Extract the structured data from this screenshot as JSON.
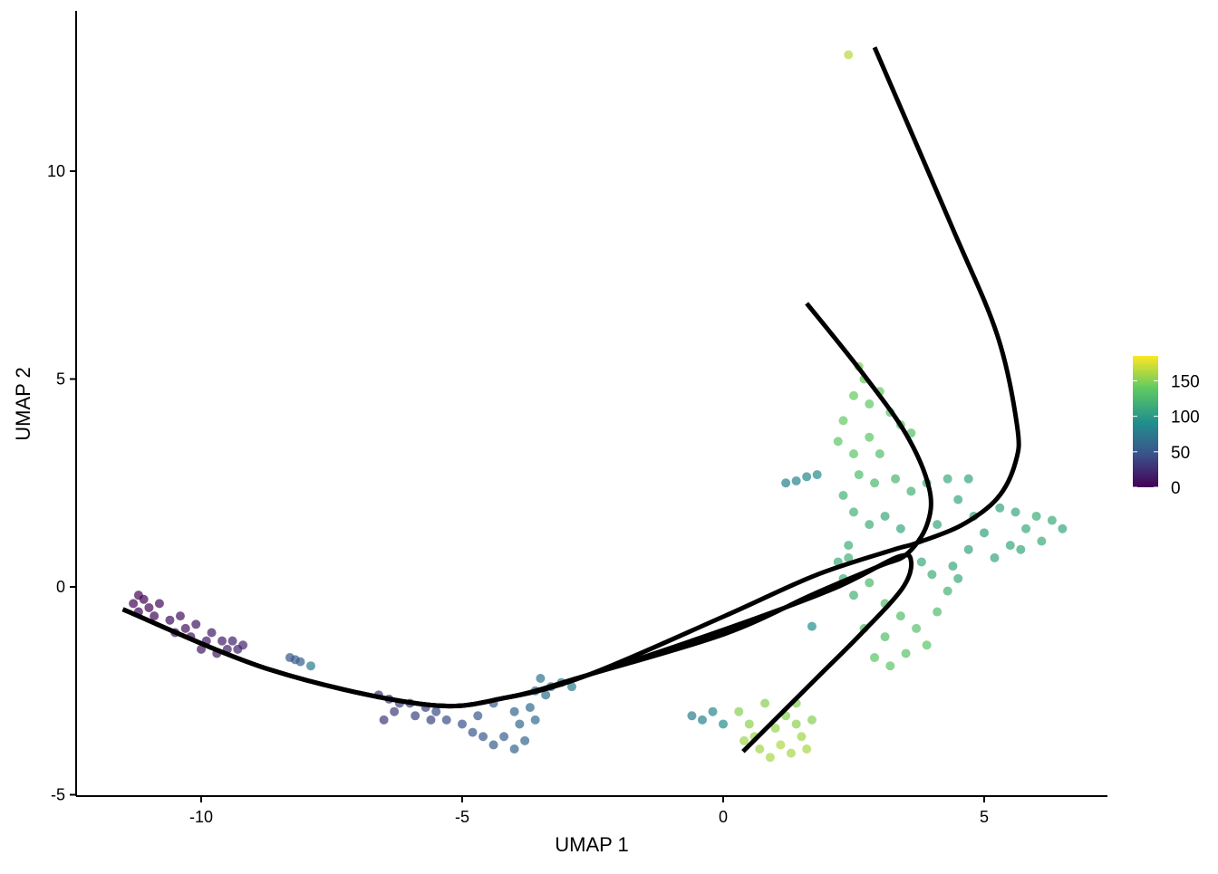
{
  "chart_data": {
    "type": "scatter",
    "xlabel": "UMAP 1",
    "ylabel": "UMAP 2",
    "xlim": [
      -12.5,
      7.3
    ],
    "ylim": [
      -5,
      13.7
    ],
    "x_ticks": [
      -10,
      -5,
      0,
      5
    ],
    "y_ticks": [
      -5,
      0,
      5,
      10
    ],
    "grid": false,
    "legend": {
      "position": "right",
      "type": "colorbar",
      "palette": "viridis",
      "range": [
        0,
        185
      ],
      "ticks": [
        0,
        50,
        100,
        150
      ],
      "colors": [
        "#440154",
        "#3b528b",
        "#21918c",
        "#5ec962",
        "#fde725"
      ]
    },
    "points": [
      [
        -11.3,
        -0.4,
        2
      ],
      [
        -11.2,
        -0.6,
        3
      ],
      [
        -11.1,
        -0.3,
        1
      ],
      [
        -11.0,
        -0.5,
        4
      ],
      [
        -10.9,
        -0.7,
        5
      ],
      [
        -11.2,
        -0.2,
        2
      ],
      [
        -10.8,
        -0.4,
        6
      ],
      [
        -10.6,
        -0.8,
        8
      ],
      [
        -10.4,
        -0.7,
        9
      ],
      [
        -10.3,
        -1.0,
        10
      ],
      [
        -10.1,
        -0.9,
        12
      ],
      [
        -10.2,
        -1.2,
        11
      ],
      [
        -10.0,
        -1.5,
        13
      ],
      [
        -9.9,
        -1.3,
        14
      ],
      [
        -9.8,
        -1.1,
        15
      ],
      [
        -9.6,
        -1.3,
        16
      ],
      [
        -9.5,
        -1.5,
        17
      ],
      [
        -9.4,
        -1.3,
        18
      ],
      [
        -9.3,
        -1.5,
        19
      ],
      [
        -9.2,
        -1.4,
        20
      ],
      [
        -9.7,
        -1.6,
        16
      ],
      [
        -10.5,
        -1.1,
        9
      ],
      [
        -8.3,
        -1.7,
        48
      ],
      [
        -8.2,
        -1.75,
        52
      ],
      [
        -8.1,
        -1.8,
        55
      ],
      [
        -7.9,
        -1.9,
        75
      ],
      [
        -6.6,
        -2.6,
        30
      ],
      [
        -6.4,
        -2.7,
        32
      ],
      [
        -6.3,
        -3.0,
        34
      ],
      [
        -6.5,
        -3.2,
        33
      ],
      [
        -6.2,
        -2.8,
        35
      ],
      [
        -6.0,
        -2.8,
        36
      ],
      [
        -5.9,
        -3.1,
        38
      ],
      [
        -5.7,
        -2.9,
        37
      ],
      [
        -5.6,
        -3.2,
        39
      ],
      [
        -5.5,
        -3.0,
        42
      ],
      [
        -5.3,
        -3.2,
        44
      ],
      [
        -5.0,
        -3.3,
        46
      ],
      [
        -4.8,
        -3.5,
        50
      ],
      [
        -4.6,
        -3.6,
        52
      ],
      [
        -4.4,
        -3.8,
        55
      ],
      [
        -4.2,
        -3.6,
        58
      ],
      [
        -4.0,
        -3.9,
        60
      ],
      [
        -3.8,
        -3.7,
        62
      ],
      [
        -3.9,
        -3.3,
        63
      ],
      [
        -4.0,
        -3.0,
        60
      ],
      [
        -3.7,
        -2.9,
        64
      ],
      [
        -3.6,
        -2.5,
        66
      ],
      [
        -3.5,
        -2.2,
        70
      ],
      [
        -3.4,
        -2.6,
        68
      ],
      [
        -3.3,
        -2.4,
        72
      ],
      [
        -3.1,
        -2.3,
        75
      ],
      [
        -2.9,
        -2.4,
        78
      ],
      [
        -4.4,
        -2.8,
        56
      ],
      [
        -4.7,
        -3.1,
        52
      ],
      [
        -3.6,
        -3.2,
        65
      ],
      [
        -0.6,
        -3.1,
        80
      ],
      [
        -0.4,
        -3.2,
        82
      ],
      [
        -0.2,
        -3.0,
        85
      ],
      [
        0.0,
        -3.3,
        90
      ],
      [
        0.3,
        -3.0,
        150
      ],
      [
        0.5,
        -3.3,
        152
      ],
      [
        0.6,
        -3.6,
        155
      ],
      [
        0.7,
        -3.9,
        158
      ],
      [
        0.9,
        -4.1,
        160
      ],
      [
        1.1,
        -3.8,
        162
      ],
      [
        1.0,
        -3.4,
        155
      ],
      [
        1.2,
        -3.1,
        150
      ],
      [
        1.4,
        -3.3,
        152
      ],
      [
        1.5,
        -3.6,
        158
      ],
      [
        1.6,
        -3.9,
        160
      ],
      [
        1.7,
        -3.2,
        150
      ],
      [
        1.4,
        -2.8,
        148
      ],
      [
        0.8,
        -2.8,
        150
      ],
      [
        1.3,
        -4.0,
        160
      ],
      [
        0.4,
        -3.7,
        157
      ],
      [
        1.2,
        2.5,
        80
      ],
      [
        1.4,
        2.55,
        82
      ],
      [
        1.6,
        2.65,
        85
      ],
      [
        1.8,
        2.7,
        88
      ],
      [
        2.4,
        12.8,
        165
      ],
      [
        1.7,
        -0.95,
        90
      ],
      [
        2.6,
        5.3,
        145
      ],
      [
        2.7,
        5.0,
        142
      ],
      [
        2.5,
        4.6,
        140
      ],
      [
        2.8,
        4.4,
        138
      ],
      [
        3.0,
        4.7,
        140
      ],
      [
        3.2,
        4.2,
        135
      ],
      [
        3.4,
        3.9,
        132
      ],
      [
        3.6,
        3.7,
        130
      ],
      [
        2.3,
        4.0,
        140
      ],
      [
        2.2,
        3.5,
        138
      ],
      [
        2.5,
        3.2,
        135
      ],
      [
        2.8,
        3.6,
        136
      ],
      [
        3.0,
        3.2,
        130
      ],
      [
        2.6,
        2.7,
        128
      ],
      [
        2.9,
        2.5,
        125
      ],
      [
        3.3,
        2.6,
        122
      ],
      [
        3.6,
        2.3,
        118
      ],
      [
        3.9,
        2.5,
        115
      ],
      [
        2.3,
        2.2,
        120
      ],
      [
        2.5,
        1.8,
        118
      ],
      [
        2.8,
        1.5,
        115
      ],
      [
        3.1,
        1.7,
        112
      ],
      [
        3.4,
        1.4,
        110
      ],
      [
        2.4,
        1.0,
        115
      ],
      [
        2.2,
        0.6,
        112
      ],
      [
        2.3,
        0.2,
        115
      ],
      [
        2.5,
        -0.2,
        120
      ],
      [
        2.8,
        0.1,
        125
      ],
      [
        3.1,
        -0.4,
        128
      ],
      [
        3.4,
        -0.7,
        130
      ],
      [
        3.7,
        -1.0,
        132
      ],
      [
        3.9,
        -1.4,
        135
      ],
      [
        3.5,
        -1.6,
        134
      ],
      [
        3.2,
        -1.9,
        136
      ],
      [
        2.9,
        -1.7,
        135
      ],
      [
        3.1,
        -1.2,
        130
      ],
      [
        2.7,
        -1.0,
        130
      ],
      [
        4.1,
        -0.6,
        128
      ],
      [
        4.3,
        -0.1,
        120
      ],
      [
        4.0,
        0.3,
        115
      ],
      [
        4.4,
        0.5,
        110
      ],
      [
        4.7,
        0.9,
        108
      ],
      [
        5.0,
        1.3,
        106
      ],
      [
        5.2,
        0.7,
        108
      ],
      [
        5.5,
        1.0,
        110
      ],
      [
        5.8,
        1.4,
        112
      ],
      [
        6.0,
        1.7,
        114
      ],
      [
        6.3,
        1.6,
        112
      ],
      [
        6.5,
        1.4,
        110
      ],
      [
        5.6,
        1.8,
        110
      ],
      [
        5.3,
        1.9,
        108
      ],
      [
        4.8,
        1.7,
        106
      ],
      [
        4.5,
        2.1,
        110
      ],
      [
        4.3,
        2.6,
        112
      ],
      [
        4.7,
        2.6,
        108
      ],
      [
        4.1,
        1.5,
        110
      ],
      [
        3.8,
        0.6,
        112
      ],
      [
        4.5,
        0.2,
        112
      ],
      [
        5.7,
        0.9,
        110
      ],
      [
        6.1,
        1.1,
        112
      ],
      [
        2.4,
        0.7,
        118
      ]
    ],
    "curves": [
      {
        "x": [
          -11.5,
          -8.66,
          -5.7,
          -4.14,
          -2.57,
          0.03,
          1.77,
          3.25,
          3.69,
          4.56,
          5.25,
          5.6,
          5.63,
          5.25,
          4.38,
          2.9
        ],
        "y": [
          -0.54,
          -2.0,
          -2.83,
          -2.66,
          -2.11,
          -0.7,
          0.28,
          0.89,
          1.05,
          1.48,
          2.13,
          3.0,
          3.88,
          6.06,
          8.67,
          12.98
        ]
      },
      {
        "x": [
          -11.5,
          -8.66,
          -5.7,
          -4.14,
          -2.57,
          0.03,
          1.77,
          2.99,
          3.51,
          3.9,
          3.95,
          3.51,
          2.64,
          1.6
        ],
        "y": [
          -0.54,
          -2.0,
          -2.83,
          -2.66,
          -2.11,
          -1.13,
          -0.15,
          0.5,
          0.78,
          1.48,
          2.35,
          3.66,
          5.19,
          6.82
        ]
      },
      {
        "x": [
          -11.5,
          -8.66,
          -5.7,
          -4.14,
          -2.57,
          0.03,
          2.12,
          3.34,
          3.6,
          3.43,
          2.64,
          1.77,
          0.38
        ],
        "y": [
          -0.54,
          -2.0,
          -2.83,
          -2.66,
          -2.11,
          -1.02,
          -0.04,
          0.72,
          0.61,
          -0.04,
          -1.13,
          -2.22,
          -3.96
        ]
      }
    ]
  }
}
